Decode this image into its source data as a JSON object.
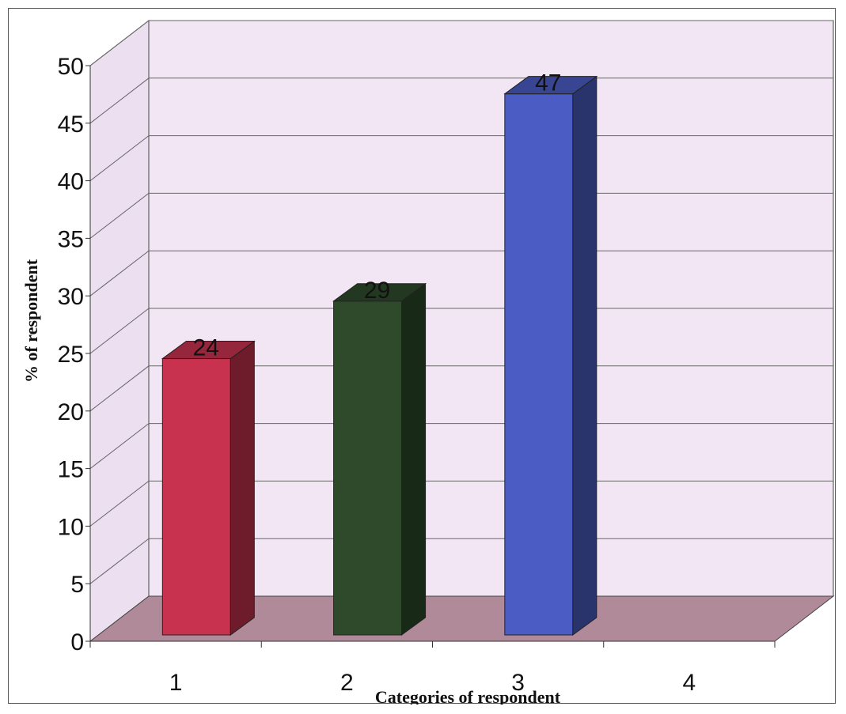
{
  "chart_data": {
    "type": "bar",
    "categories": [
      "1",
      "2",
      "3",
      "4"
    ],
    "values": [
      24,
      29,
      47,
      null
    ],
    "data_labels": [
      "24",
      "29",
      "47",
      ""
    ],
    "xlabel": "Categories of respondent",
    "ylabel": "% of respondent",
    "ylim": [
      0,
      50
    ],
    "yticks": [
      "0",
      "5",
      "10",
      "15",
      "20",
      "25",
      "30",
      "35",
      "40",
      "45",
      "50"
    ],
    "grid": true,
    "legend": "none",
    "style": "3d",
    "colors": {
      "bars": [
        "#c8324e",
        "#2e4a2a",
        "#4b5cc4"
      ],
      "back_wall": "#f2e6f4",
      "side_wall": "#ecdff0",
      "floor": "#b08a98",
      "grid": "#666666"
    }
  }
}
